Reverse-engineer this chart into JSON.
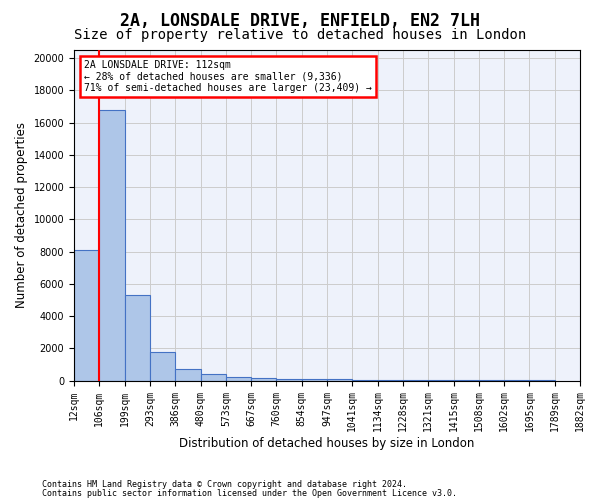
{
  "title": "2A, LONSDALE DRIVE, ENFIELD, EN2 7LH",
  "subtitle": "Size of property relative to detached houses in London",
  "xlabel": "Distribution of detached houses by size in London",
  "ylabel": "Number of detached properties",
  "footer1": "Contains HM Land Registry data © Crown copyright and database right 2024.",
  "footer2": "Contains public sector information licensed under the Open Government Licence v3.0.",
  "annotation_line1": "2A LONSDALE DRIVE: 112sqm",
  "annotation_line2": "← 28% of detached houses are smaller (9,336)",
  "annotation_line3": "71% of semi-detached houses are larger (23,409) →",
  "bar_values": [
    8100,
    16800,
    5300,
    1800,
    700,
    400,
    250,
    150,
    100,
    80,
    70,
    60,
    50,
    45,
    40,
    35,
    30,
    25,
    15
  ],
  "bin_labels": [
    "12sqm",
    "106sqm",
    "199sqm",
    "293sqm",
    "386sqm",
    "480sqm",
    "573sqm",
    "667sqm",
    "760sqm",
    "854sqm",
    "947sqm",
    "1041sqm",
    "1134sqm",
    "1228sqm",
    "1321sqm",
    "1415sqm",
    "1508sqm",
    "1602sqm",
    "1695sqm",
    "1789sqm",
    "1882sqm"
  ],
  "bar_color": "#aec6e8",
  "bar_edge_color": "#4472c4",
  "red_line_x": 1.0,
  "ylim": [
    0,
    20500
  ],
  "yticks": [
    0,
    2000,
    4000,
    6000,
    8000,
    10000,
    12000,
    14000,
    16000,
    18000,
    20000
  ],
  "title_fontsize": 12,
  "subtitle_fontsize": 10,
  "axis_label_fontsize": 8.5,
  "tick_fontsize": 7
}
